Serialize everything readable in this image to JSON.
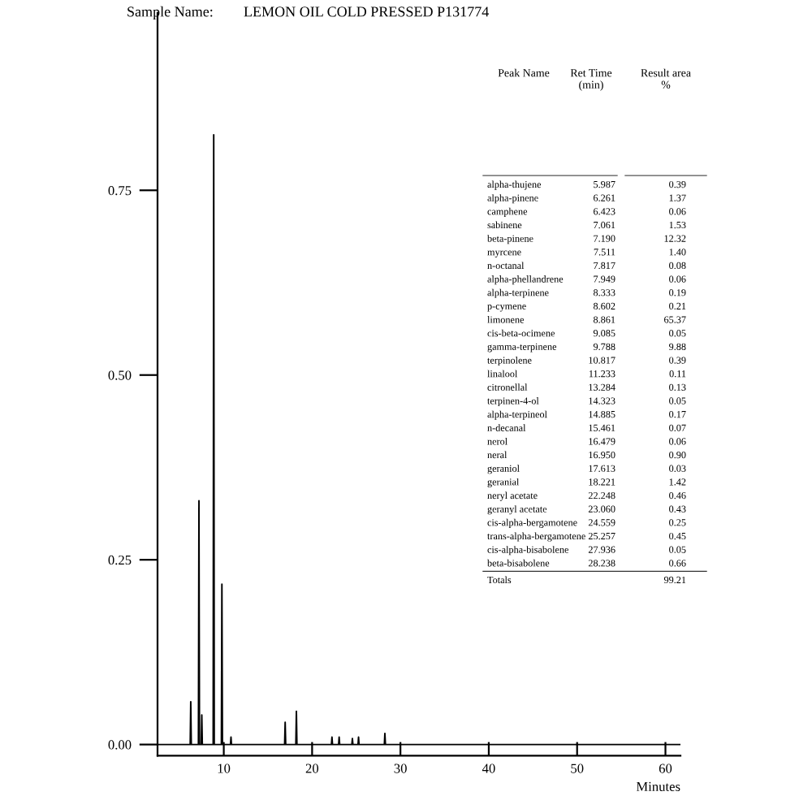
{
  "chart_data": {
    "type": "line",
    "title": "LEMON OIL COLD PRESSED P131774",
    "xlabel": "Minutes",
    "xlim": [
      2.5,
      61.7
    ],
    "xticks": [
      10,
      20,
      30,
      40,
      50,
      60
    ],
    "ylim": [
      -0.015,
      0.99
    ],
    "yticks": [
      {
        "value": 0,
        "label": "0.00"
      },
      {
        "value": 0.25,
        "label": "0.25"
      },
      {
        "value": 0.5,
        "label": "0.50"
      },
      {
        "value": 0.75,
        "label": "0.75"
      }
    ],
    "grid": false,
    "legend": false,
    "marker": "none",
    "line_style": "solid",
    "series": [
      {
        "color": "#000000",
        "x": [
          2.5,
          6.2,
          6.261,
          6.32,
          7.13,
          7.19,
          7.25,
          7.45,
          7.511,
          7.57,
          8.8,
          8.861,
          8.92,
          9.73,
          9.788,
          9.85,
          10.76,
          10.817,
          10.87,
          16.89,
          16.95,
          17.01,
          18.16,
          18.221,
          18.28,
          22.19,
          22.248,
          22.31,
          23.0,
          23.06,
          23.12,
          24.5,
          24.559,
          24.62,
          25.2,
          25.257,
          25.31,
          28.18,
          28.238,
          28.3,
          61.7
        ],
        "values": [
          0,
          0,
          0.058,
          0,
          0,
          0.33,
          0,
          0,
          0.04,
          0,
          0,
          0.825,
          0,
          0,
          0.217,
          0,
          0,
          0.01,
          0,
          0,
          0.03,
          0,
          0,
          0.045,
          0,
          0,
          0.01,
          0,
          0,
          0.01,
          0,
          0,
          0.008,
          0,
          0,
          0.01,
          0,
          0,
          0.015,
          0,
          0
        ]
      }
    ],
    "annotations": [
      "Sample Name:",
      "Peak Name",
      "Ret Time\n(min)",
      "Result area\n%",
      "alpha-thujene",
      "5.987",
      "0.39",
      "alpha-pinene",
      "6.261",
      "1.37",
      "camphene",
      "6.423",
      "0.06",
      "sabinene",
      "7.061",
      "1.53",
      "beta-pinene",
      "7.190",
      "12.32",
      "myrcene",
      "7.511",
      "1.40",
      "n-octanal",
      "7.817",
      "0.08",
      "alpha-phellandrene",
      "7.949",
      "0.06",
      "alpha-terpinene",
      "8.333",
      "0.19",
      "p-cymene",
      "8.602",
      "0.21",
      "limonene",
      "8.861",
      "65.37",
      "cis-beta-ocimene",
      "9.085",
      "0.05",
      "gamma-terpinene",
      "9.788",
      "9.88",
      "terpinolene",
      "10.817",
      "0.39",
      "linalool",
      "11.233",
      "0.11",
      "citronellal",
      "13.284",
      "0.13",
      "terpinen-4-ol",
      "14.323",
      "0.05",
      "alpha-terpineol",
      "14.885",
      "0.17",
      "n-decanal",
      "15.461",
      "0.07",
      "nerol",
      "16.479",
      "0.06",
      "neral",
      "16.950",
      "0.90",
      "geraniol",
      "17.613",
      "0.03",
      "geranial",
      "18.221",
      "1.42",
      "neryl acetate",
      "22.248",
      "0.46",
      "geranyl acetate",
      "23.060",
      "0.43",
      "cis-alpha-bergamotene",
      "24.559",
      "0.25",
      "trans-alpha-bergamotene",
      "25.257",
      "0.45",
      "cis-alpha-bisabolene",
      "27.936",
      "0.05",
      "beta-bisabolene",
      "28.238",
      "0.66",
      "Totals",
      "99.21"
    ]
  }
}
